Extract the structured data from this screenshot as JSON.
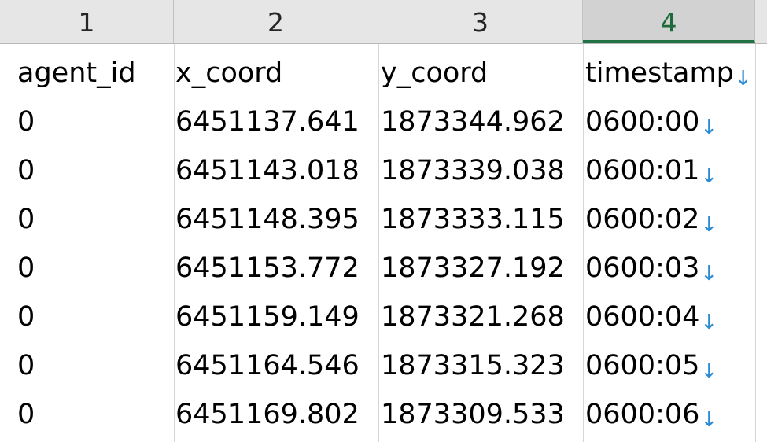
{
  "columns": [
    {
      "number": "1"
    },
    {
      "number": "2"
    },
    {
      "number": "3"
    },
    {
      "number": "4",
      "selected": true
    }
  ],
  "header_cells": [
    "agent_id",
    "x_coord",
    "y_coord",
    "timestamp"
  ],
  "rows": [
    [
      "0",
      "6451137.641",
      "1873344.962",
      "0600:00"
    ],
    [
      "0",
      "6451143.018",
      "1873339.038",
      "0600:01"
    ],
    [
      "0",
      "6451148.395",
      "1873333.115",
      "0600:02"
    ],
    [
      "0",
      "6451153.772",
      "1873327.192",
      "0600:03"
    ],
    [
      "0",
      "6451159.149",
      "1873321.268",
      "0600:04"
    ],
    [
      "0",
      "6451164.546",
      "1873315.323",
      "0600:05"
    ],
    [
      "0",
      "6451169.802",
      "1873309.533",
      "0600:06"
    ]
  ],
  "line_break_icon": "↓",
  "colors": {
    "header_bg": "#e6e6e6",
    "selected_header_bg": "#d2d2d2",
    "selected_accent": "#217346",
    "line_break_icon": "#2a8ad4"
  }
}
